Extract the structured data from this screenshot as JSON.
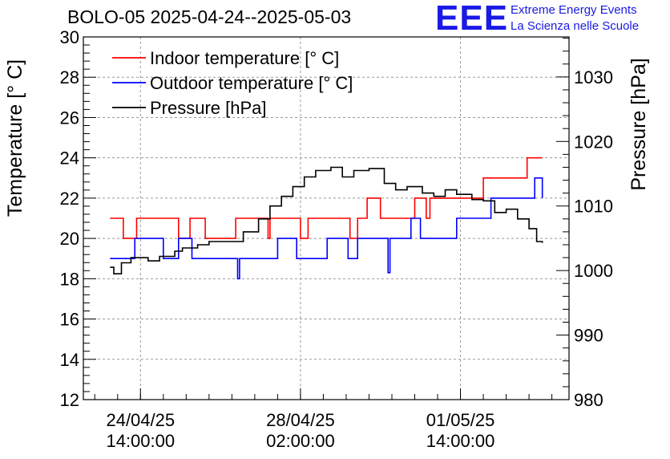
{
  "header": {
    "title": "BOLO-05 2025-04-24--2025-05-03",
    "logo_text": "EEE",
    "org_line1": "Extreme Energy Events",
    "org_line2": "La Scienza nelle Scuole",
    "logo_color": "#1a1ae6"
  },
  "chart_data": {
    "type": "line",
    "title": "BOLO-05 2025-04-24--2025-05-03",
    "ylabel": "Temperature [° C]",
    "y2label": "Pressure [hPa]",
    "xlabel": "",
    "ylim": [
      12,
      30
    ],
    "y2lim": [
      980,
      1036.2
    ],
    "xlim": [
      "2025-04-23 08:00",
      "2025-05-03 23:00"
    ],
    "grid": true,
    "legend_position": "top-left",
    "x_ticks": [
      {
        "value": "2025-04-24 14:00",
        "line1": "24/04/25",
        "line2": "14:00:00"
      },
      {
        "value": "2025-04-28 02:00",
        "line1": "28/04/25",
        "line2": "02:00:00"
      },
      {
        "value": "2025-05-01 14:00",
        "line1": "01/05/25",
        "line2": "14:00:00"
      }
    ],
    "y_ticks": [
      12,
      14,
      16,
      18,
      20,
      22,
      24,
      26,
      28,
      30
    ],
    "y2_ticks": [
      980,
      990,
      1000,
      1010,
      1020,
      1030
    ],
    "series": [
      {
        "name": "Indoor temperature [° C]",
        "axis": "left",
        "color": "#ff0000",
        "points": [
          [
            "2025-04-23 22:00",
            21
          ],
          [
            "2025-04-24 05:00",
            20
          ],
          [
            "2025-04-24 12:00",
            21
          ],
          [
            "2025-04-25 10:00",
            20
          ],
          [
            "2025-04-25 16:00",
            21
          ],
          [
            "2025-04-26 00:00",
            20
          ],
          [
            "2025-04-26 16:00",
            21
          ],
          [
            "2025-04-26 23:00",
            21
          ],
          [
            "2025-04-27 09:00",
            20
          ],
          [
            "2025-04-27 10:00",
            21
          ],
          [
            "2025-04-28 02:00",
            20
          ],
          [
            "2025-04-28 06:00",
            21
          ],
          [
            "2025-04-29 04:00",
            20
          ],
          [
            "2025-04-29 08:00",
            21
          ],
          [
            "2025-04-29 13:00",
            22
          ],
          [
            "2025-04-29 20:00",
            21
          ],
          [
            "2025-04-30 14:00",
            22
          ],
          [
            "2025-04-30 20:00",
            21
          ],
          [
            "2025-04-30 22:00",
            22
          ],
          [
            "2025-05-01 06:00",
            22
          ],
          [
            "2025-05-02 00:00",
            22
          ],
          [
            "2025-05-02 02:00",
            23
          ],
          [
            "2025-05-03 01:00",
            24
          ],
          [
            "2025-05-03 09:00",
            24
          ]
        ]
      },
      {
        "name": "Outdoor temperature [° C]",
        "axis": "left",
        "color": "#0000ff",
        "points": [
          [
            "2025-04-23 22:00",
            19
          ],
          [
            "2025-04-24 11:00",
            20
          ],
          [
            "2025-04-25 02:00",
            19
          ],
          [
            "2025-04-25 10:00",
            20
          ],
          [
            "2025-04-25 17:00",
            19
          ],
          [
            "2025-04-26 17:00",
            18
          ],
          [
            "2025-04-26 18:00",
            19
          ],
          [
            "2025-04-27 14:00",
            20
          ],
          [
            "2025-04-28 00:00",
            19
          ],
          [
            "2025-04-28 16:00",
            20
          ],
          [
            "2025-04-29 03:00",
            19
          ],
          [
            "2025-04-29 08:00",
            20
          ],
          [
            "2025-04-30 00:00",
            18.3
          ],
          [
            "2025-04-30 01:00",
            20
          ],
          [
            "2025-04-30 12:00",
            21
          ],
          [
            "2025-04-30 17:00",
            20
          ],
          [
            "2025-05-01 12:00",
            21
          ],
          [
            "2025-05-02 06:00",
            22
          ],
          [
            "2025-05-03 05:00",
            23
          ],
          [
            "2025-05-03 09:00",
            22
          ]
        ]
      },
      {
        "name": "Pressure [hPa]",
        "axis": "right",
        "color": "#000000",
        "points": [
          [
            "2025-04-23 22:00",
            1000.5
          ],
          [
            "2025-04-24 00:00",
            999.5
          ],
          [
            "2025-04-24 04:00",
            1001.2
          ],
          [
            "2025-04-24 09:00",
            1002.0
          ],
          [
            "2025-04-24 14:00",
            1002.0
          ],
          [
            "2025-04-24 18:00",
            1001.5
          ],
          [
            "2025-04-25 00:00",
            1002.2
          ],
          [
            "2025-04-25 08:00",
            1003.0
          ],
          [
            "2025-04-25 12:00",
            1003.5
          ],
          [
            "2025-04-25 20:00",
            1004.0
          ],
          [
            "2025-04-26 02:00",
            1004.5
          ],
          [
            "2025-04-26 12:00",
            1004.5
          ],
          [
            "2025-04-26 20:00",
            1006.0
          ],
          [
            "2025-04-27 04:00",
            1008.0
          ],
          [
            "2025-04-27 10:00",
            1010.0
          ],
          [
            "2025-04-27 16:00",
            1011.5
          ],
          [
            "2025-04-27 22:00",
            1013.0
          ],
          [
            "2025-04-28 04:00",
            1014.5
          ],
          [
            "2025-04-28 10:00",
            1015.5
          ],
          [
            "2025-04-28 18:00",
            1016.0
          ],
          [
            "2025-04-29 00:00",
            1014.5
          ],
          [
            "2025-04-29 06:00",
            1015.5
          ],
          [
            "2025-04-29 14:00",
            1015.8
          ],
          [
            "2025-04-29 22:00",
            1013.5
          ],
          [
            "2025-04-30 04:00",
            1012.5
          ],
          [
            "2025-04-30 10:00",
            1013.0
          ],
          [
            "2025-04-30 18:00",
            1012.0
          ],
          [
            "2025-05-01 00:00",
            1011.5
          ],
          [
            "2025-05-01 06:00",
            1012.5
          ],
          [
            "2025-05-01 12:00",
            1011.8
          ],
          [
            "2025-05-01 20:00",
            1011.0
          ],
          [
            "2025-05-02 02:00",
            1010.8
          ],
          [
            "2025-05-02 08:00",
            1009.0
          ],
          [
            "2025-05-02 14:00",
            1009.5
          ],
          [
            "2025-05-02 20:00",
            1008.0
          ],
          [
            "2025-05-03 02:00",
            1006.5
          ],
          [
            "2025-05-03 06:00",
            1004.5
          ],
          [
            "2025-05-03 09:00",
            1004.3
          ]
        ]
      }
    ]
  }
}
